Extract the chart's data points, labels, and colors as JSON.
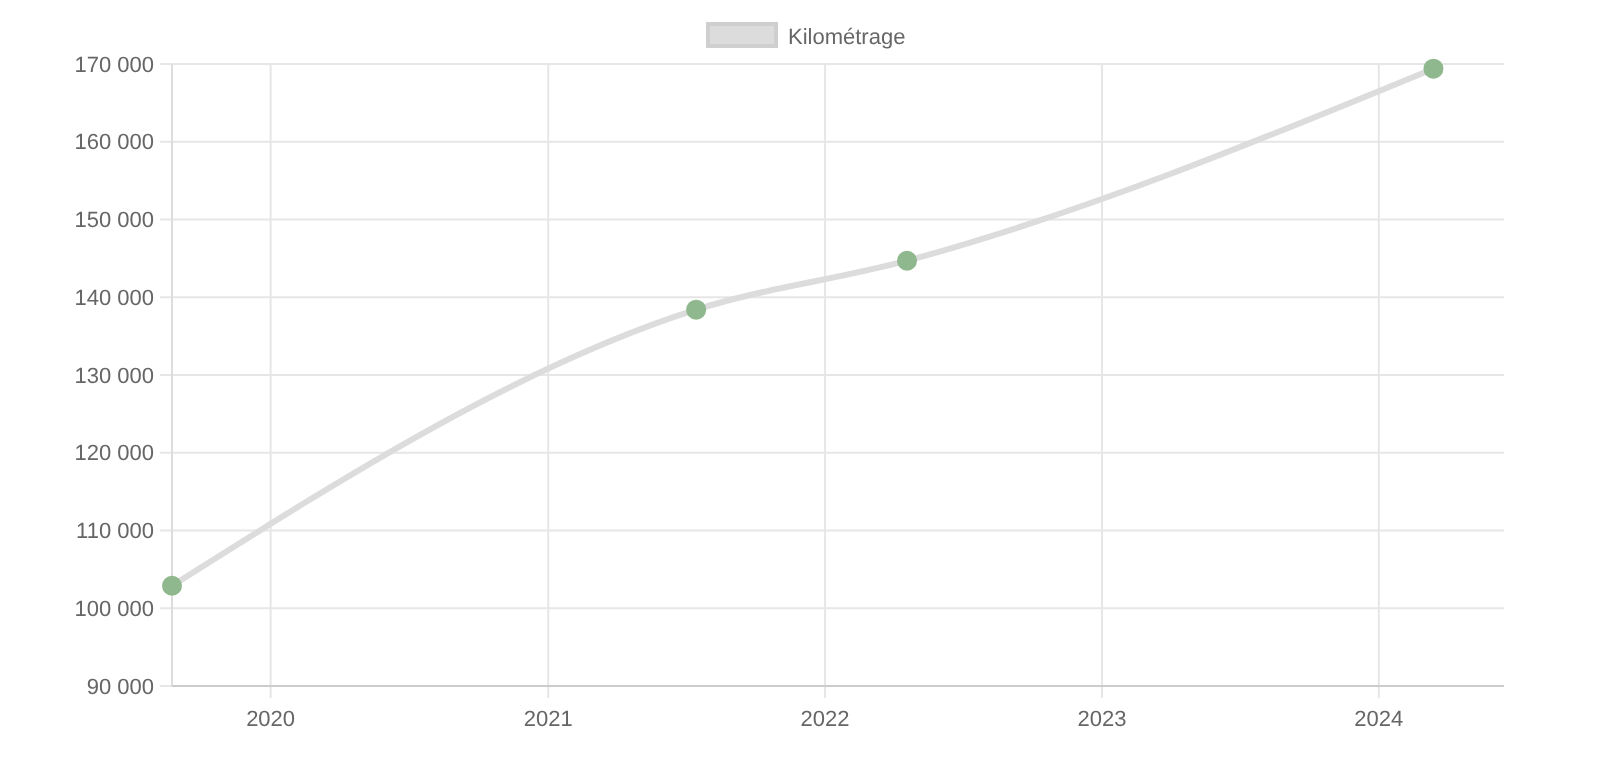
{
  "chart_data": {
    "type": "line",
    "x": [
      "2019-08-24",
      "2021-07-15",
      "2022-04-19",
      "2024-03-13"
    ],
    "series": [
      {
        "name": "Kilométrage",
        "color": "#dcdcdc",
        "colors": [
          "#8fb88f",
          "#8fb88f",
          "#8fb88f",
          "#8fb88f"
        ],
        "values": [
          102900,
          138400,
          144700,
          169400
        ]
      }
    ],
    "xlim": [
      "2019-08-24",
      "2024-06-14"
    ],
    "xticks": [
      "2020",
      "2021",
      "2022",
      "2023",
      "2024"
    ],
    "ylim": [
      90000,
      170000
    ],
    "yticks": [
      {
        "value": 90000,
        "label": "90 000"
      },
      {
        "value": 100000,
        "label": "100 000"
      },
      {
        "value": 110000,
        "label": "110 000"
      },
      {
        "value": 120000,
        "label": "120 000"
      },
      {
        "value": 130000,
        "label": "130 000"
      },
      {
        "value": 140000,
        "label": "140 000"
      },
      {
        "value": 150000,
        "label": "150 000"
      },
      {
        "value": 160000,
        "label": "160 000"
      },
      {
        "value": 170000,
        "label": "170 000"
      }
    ],
    "grid": true,
    "legend": "top",
    "marker": "circle",
    "line_style": "solid"
  }
}
